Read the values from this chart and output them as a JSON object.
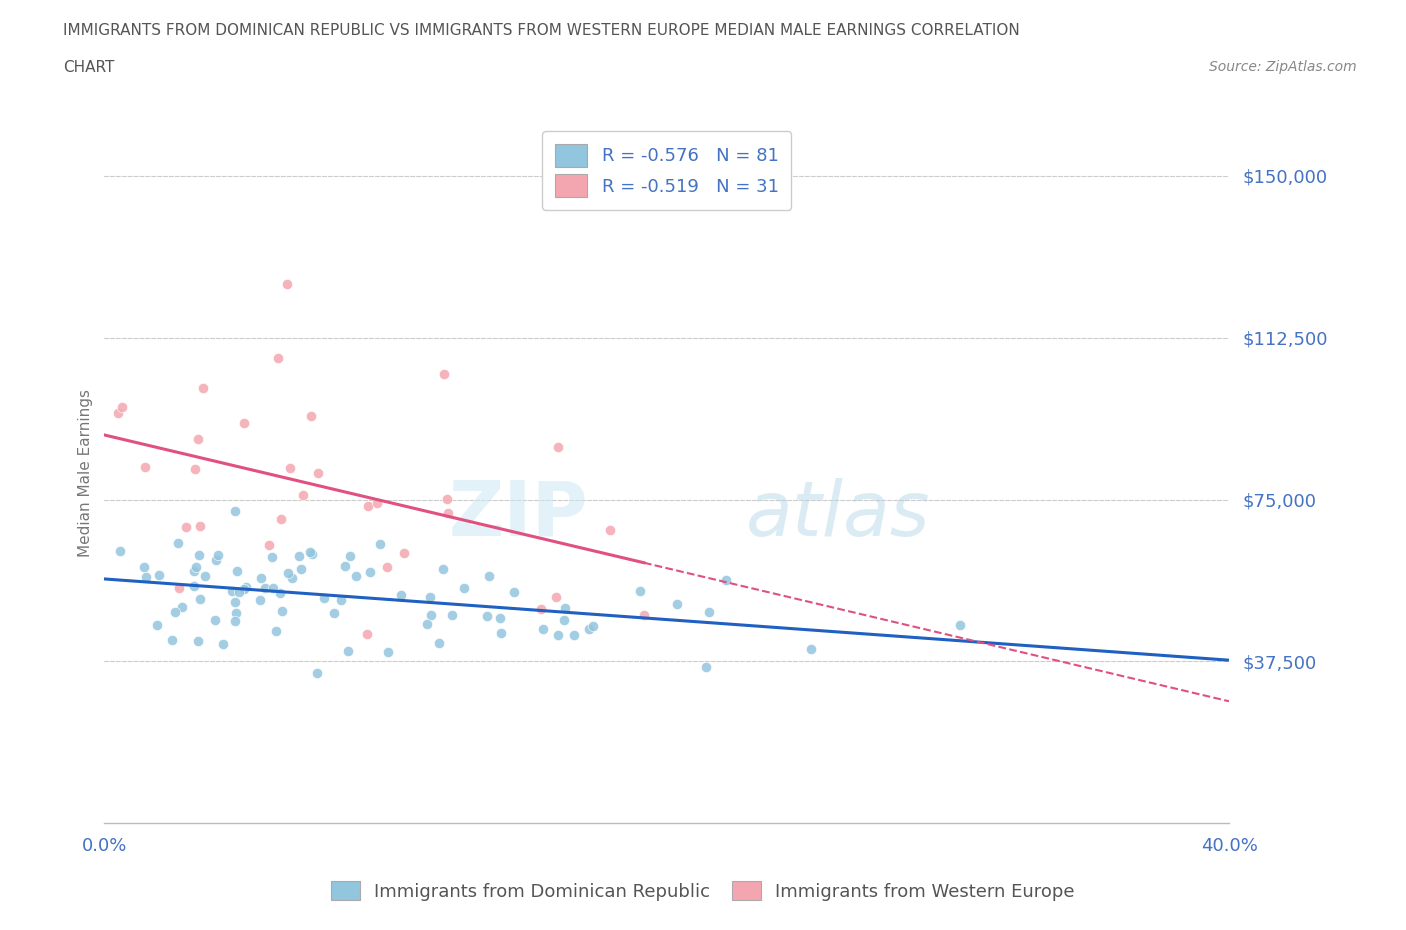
{
  "title_line1": "IMMIGRANTS FROM DOMINICAN REPUBLIC VS IMMIGRANTS FROM WESTERN EUROPE MEDIAN MALE EARNINGS CORRELATION",
  "title_line2": "CHART",
  "source_text": "Source: ZipAtlas.com",
  "series1_name": "Immigrants from Dominican Republic",
  "series2_name": "Immigrants from Western Europe",
  "series1_color": "#92C5DE",
  "series2_color": "#F4A6B0",
  "series1_line_color": "#2060C0",
  "series2_line_color": "#E05080",
  "R1": -0.576,
  "N1": 81,
  "R2": -0.519,
  "N2": 31,
  "xlim": [
    0.0,
    0.4
  ],
  "ylim": [
    0,
    162500
  ],
  "xticks": [
    0.0,
    0.05,
    0.1,
    0.15,
    0.2,
    0.25,
    0.3,
    0.35,
    0.4
  ],
  "ytick_positions": [
    37500,
    75000,
    112500,
    150000
  ],
  "ytick_labels": [
    "$37,500",
    "$75,000",
    "$112,500",
    "$150,000"
  ],
  "watermark_zip": "ZIP",
  "watermark_atlas": "atlas",
  "background_color": "#ffffff",
  "grid_color": "#cccccc",
  "title_color": "#555555",
  "axis_label_color": "#777777",
  "tick_color": "#4472C4",
  "legend_text_color": "#333333"
}
